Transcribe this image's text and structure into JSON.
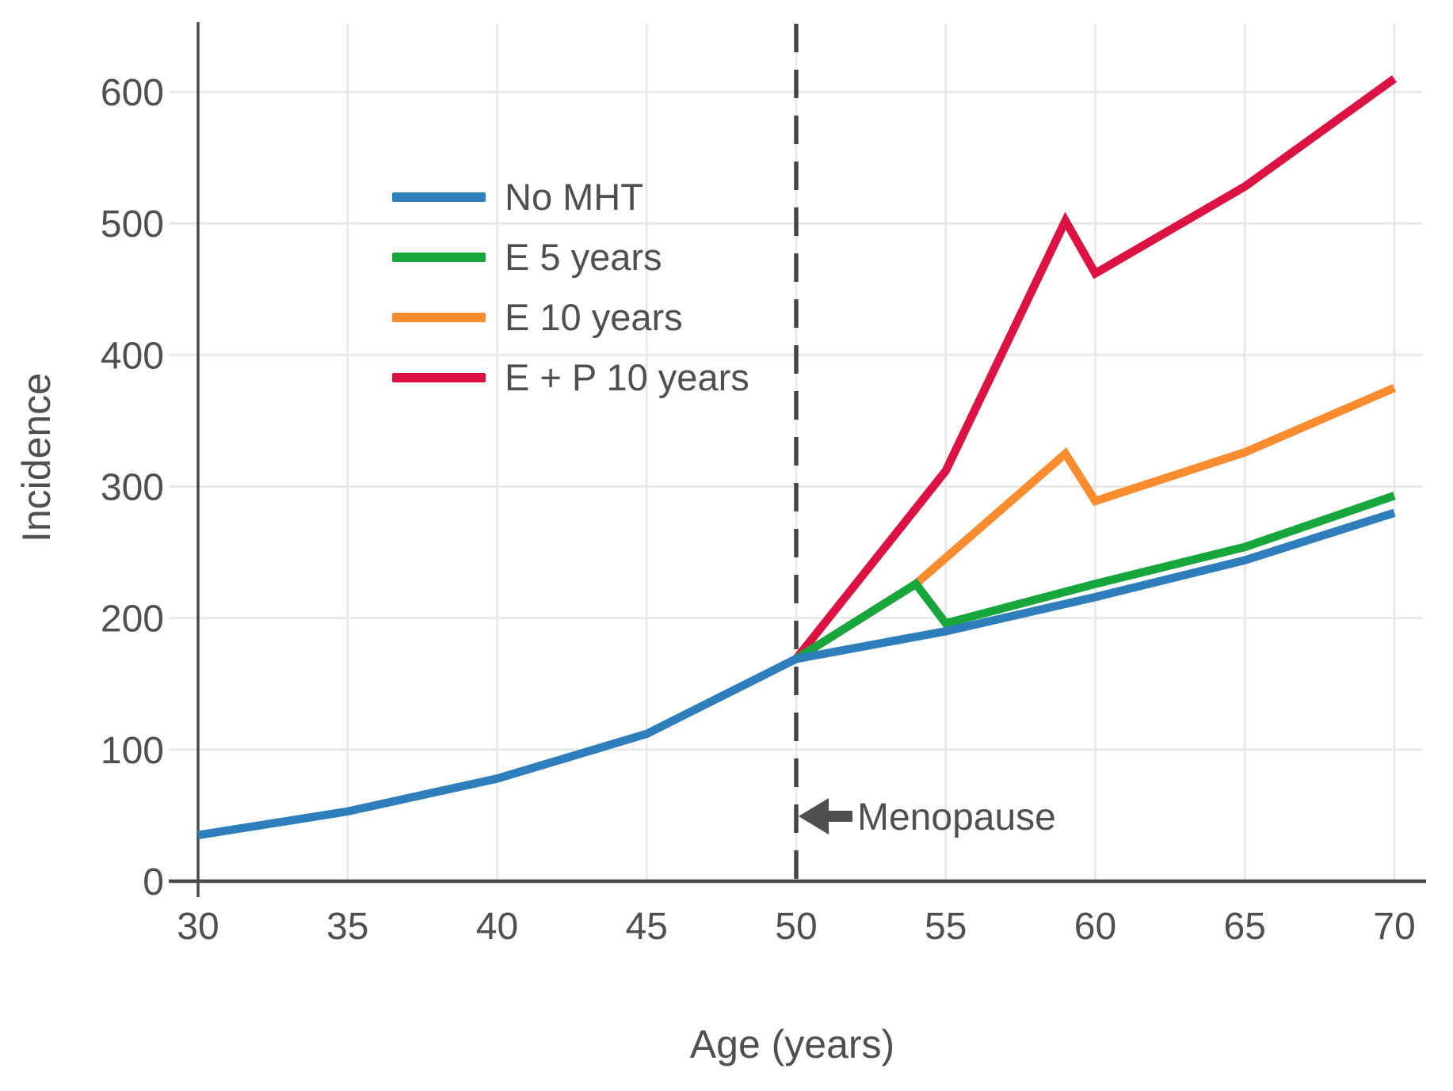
{
  "chart_data": {
    "type": "line",
    "title": "",
    "xlabel": "Age (years)",
    "ylabel": "Incidence",
    "xlim": [
      30,
      70
    ],
    "ylim": [
      0,
      650
    ],
    "xticks": [
      30,
      35,
      40,
      45,
      50,
      55,
      60,
      65,
      70
    ],
    "yticks": [
      0,
      100,
      200,
      300,
      400,
      500,
      600
    ],
    "grid": true,
    "legend_position": "upper-left-inside",
    "vline": {
      "x": 50,
      "style": "dashed",
      "color": "#454545"
    },
    "annotation": {
      "label": "Menopause",
      "x": 50,
      "y": 50,
      "arrow_direction": "left"
    },
    "series": [
      {
        "name": "No MHT",
        "color": "#2E7EBC",
        "points": [
          [
            30,
            35
          ],
          [
            35,
            53
          ],
          [
            40,
            78
          ],
          [
            45,
            112
          ],
          [
            50,
            169
          ],
          [
            55,
            190
          ],
          [
            60,
            216
          ],
          [
            65,
            244
          ],
          [
            70,
            280
          ]
        ]
      },
      {
        "name": "E 5 years",
        "color": "#17A63C",
        "points": [
          [
            50,
            169
          ],
          [
            54,
            226
          ],
          [
            55,
            196
          ],
          [
            60,
            226
          ],
          [
            65,
            254
          ],
          [
            70,
            293
          ]
        ]
      },
      {
        "name": "E 10 years",
        "color": "#F88C2E",
        "points": [
          [
            50,
            169
          ],
          [
            54,
            226
          ],
          [
            59,
            325
          ],
          [
            60,
            289
          ],
          [
            65,
            326
          ],
          [
            70,
            375
          ]
        ]
      },
      {
        "name": "E + P 10 years",
        "color": "#DC1243",
        "points": [
          [
            50,
            169
          ],
          [
            55,
            312
          ],
          [
            59,
            502
          ],
          [
            60,
            462
          ],
          [
            65,
            528
          ],
          [
            70,
            610
          ]
        ]
      }
    ],
    "colors": {
      "axis": "#4A4A4A",
      "tick_labels": "#4D4D4D",
      "grid": "#E8E8E8",
      "annotation": "#4F4F4F",
      "background": "#FFFFFF"
    }
  }
}
